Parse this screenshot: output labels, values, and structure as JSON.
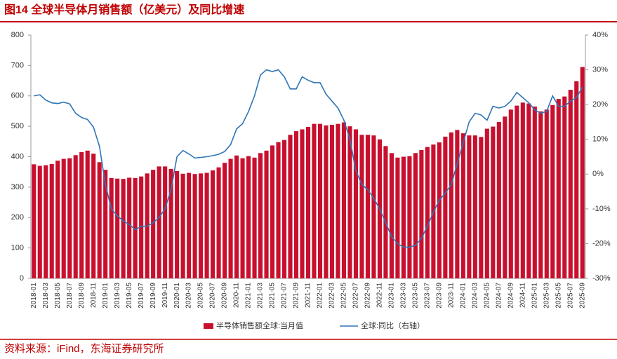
{
  "chart_data": {
    "type": "bar_line",
    "title": "图14  全球半导体月销售额（亿美元）及同比增速",
    "source": "资料来源：iFind，东海证券研究所",
    "categories": [
      "2018-01",
      null,
      "2018-03",
      null,
      "2018-05",
      null,
      "2018-07",
      null,
      "2018-09",
      null,
      "2018-11",
      null,
      "2019-01",
      null,
      "2019-03",
      null,
      "2019-05",
      null,
      "2019-07",
      null,
      "2019-09",
      null,
      "2019-11",
      null,
      "2020-01",
      null,
      "2020-03",
      null,
      "2020-05",
      null,
      "2020-07",
      null,
      "2020-09",
      null,
      "2020-11",
      null,
      "2021-01",
      null,
      "2021-03",
      null,
      "2021-05",
      null,
      "2021-07",
      null,
      "2021-09",
      null,
      "2021-11",
      null,
      "2022-01",
      null,
      "2022-03",
      null,
      "2022-05",
      null,
      "2022-07",
      null,
      "2022-09",
      null,
      "2022-11",
      null,
      "2023-01",
      null,
      "2023-03",
      null,
      "2023-05",
      null,
      "2023-07",
      null,
      "2023-09",
      null,
      "2023-11",
      null,
      "2024-01",
      null,
      "2024-03",
      null,
      "2024-05",
      null,
      "2024-07",
      null,
      "2024-09",
      null,
      "2024-11",
      null,
      "2025-01",
      null,
      "2025-03",
      null,
      "2025-05",
      null,
      "2025-07",
      null,
      "2025-09"
    ],
    "series": [
      {
        "name": "半导体销售额全球:当月值",
        "type": "bar",
        "color": "#c8102e",
        "values": [
          375,
          370,
          372,
          376,
          387,
          393,
          395,
          405,
          415,
          420,
          410,
          382,
          357,
          330,
          328,
          327,
          331,
          330,
          335,
          345,
          357,
          368,
          368,
          360,
          353,
          344,
          347,
          343,
          345,
          347,
          355,
          365,
          380,
          393,
          404,
          395,
          402,
          397,
          412,
          420,
          437,
          448,
          455,
          472,
          484,
          490,
          498,
          508,
          508,
          503,
          505,
          508,
          513,
          500,
          490,
          472,
          472,
          470,
          457,
          435,
          412,
          397,
          400,
          402,
          412,
          422,
          432,
          440,
          447,
          466,
          480,
          488,
          477,
          470,
          470,
          465,
          492,
          499,
          514,
          532,
          555,
          568,
          578,
          575,
          565,
          549,
          555,
          570,
          590,
          598,
          620,
          648,
          695
        ]
      },
      {
        "name": "全球:同比（右轴）",
        "type": "line",
        "axis": "y2",
        "color": "#2e75b6",
        "values": [
          22.5,
          22.8,
          21.3,
          20.5,
          20.3,
          20.7,
          20.2,
          17.5,
          16.3,
          15.7,
          13.5,
          8,
          -3,
          -10,
          -12,
          -13.5,
          -14.5,
          -16,
          -15,
          -15,
          -14,
          -12.5,
          -10,
          -4.5,
          5,
          6.8,
          5.8,
          4.6,
          4.8,
          5,
          5.3,
          5.7,
          6.5,
          8.5,
          13,
          14.5,
          18,
          22.5,
          28.5,
          30,
          29.5,
          30,
          28,
          24.5,
          24.5,
          28,
          27,
          26.3,
          26.3,
          23,
          21,
          19,
          15.5,
          10,
          1,
          -3,
          -4.5,
          -7,
          -10,
          -14,
          -18,
          -20,
          -21,
          -21,
          -20.5,
          -18.5,
          -15,
          -11,
          -7.5,
          -5.5,
          -3,
          3,
          9,
          15,
          17.5,
          17,
          15.5,
          19.5,
          19,
          19.5,
          21,
          23.5,
          22,
          20.5,
          18.5,
          17.5,
          18,
          22.5,
          19.5,
          19.5,
          21,
          22,
          25
        ]
      }
    ],
    "ylim": [
      0,
      800
    ],
    "yticks": [
      0,
      100,
      200,
      300,
      400,
      500,
      600,
      700,
      800
    ],
    "y2lim": [
      -30,
      40
    ],
    "y2ticks": [
      {
        "value": -30,
        "label": "-30%"
      },
      {
        "value": -20,
        "label": "-20%"
      },
      {
        "value": -10,
        "label": "-10%"
      },
      {
        "value": 0,
        "label": "0%"
      },
      {
        "value": 10,
        "label": "10%"
      },
      {
        "value": 20,
        "label": "20%"
      },
      {
        "value": 30,
        "label": "30%"
      },
      {
        "value": 40,
        "label": "40%"
      }
    ],
    "legend": "bottom",
    "grid": false
  }
}
